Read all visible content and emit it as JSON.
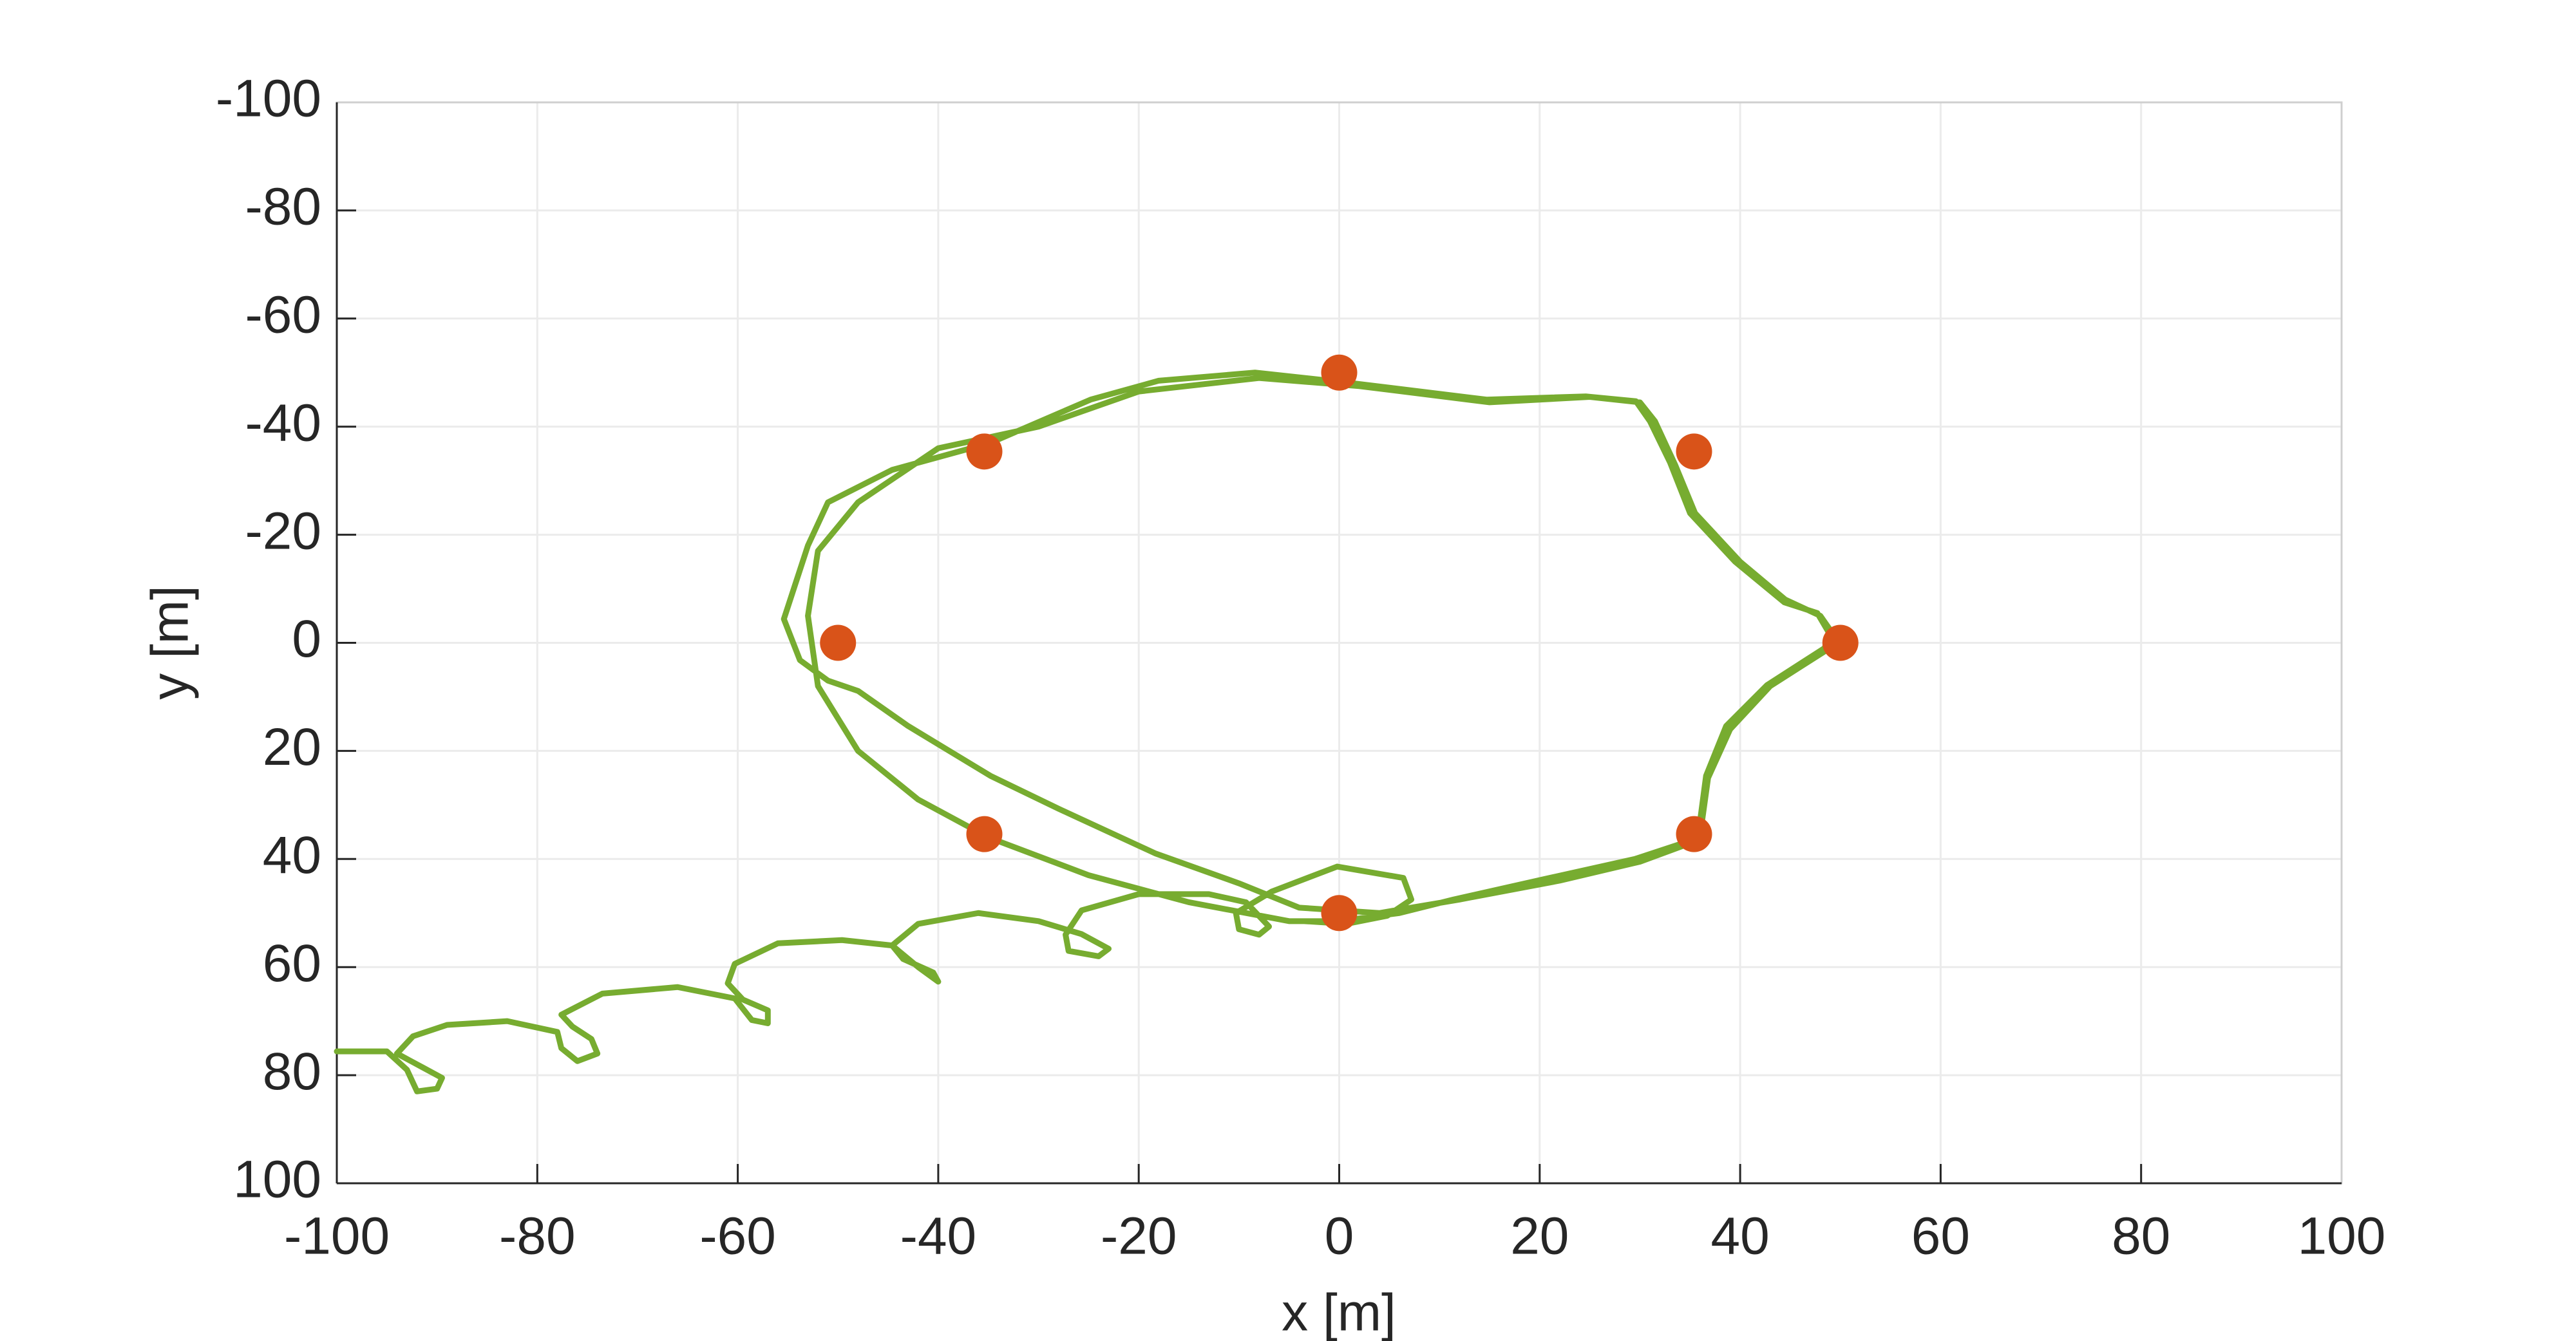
{
  "chart_data": {
    "type": "line",
    "xlabel": "x [m]",
    "ylabel": "y [m]",
    "xlim": [
      -100,
      100
    ],
    "ylim": [
      -100,
      100
    ],
    "y_reverse": true,
    "xticks": [
      -100,
      -80,
      -60,
      -40,
      -20,
      0,
      20,
      40,
      60,
      80,
      100
    ],
    "yticks": [
      -100,
      -80,
      -60,
      -40,
      -20,
      0,
      20,
      40,
      60,
      80,
      100
    ],
    "grid": true,
    "series": [
      {
        "type": "line",
        "color": "#77ac30",
        "x": [
          -100,
          -95,
          -93,
          -92,
          -90,
          -89.5,
          -91.5,
          -94,
          -92.4,
          -89,
          -83,
          -78,
          -77.6,
          -76,
          -74,
          -74.6,
          -76.5,
          -77.6,
          -73.5,
          -66,
          -60.3,
          -58.6,
          -57,
          -57,
          -59.5,
          -61,
          -60.3,
          -56,
          -49.6,
          -44.6,
          -42,
          -40,
          -40.5,
          -43.5,
          -44.6,
          -42,
          -36,
          -30,
          -25.7,
          -23,
          -24,
          -27,
          -27.3,
          -25.7,
          -20,
          -13,
          -9.3,
          -7,
          -8,
          -10,
          -10.3,
          -6.7,
          -0.2,
          6.4,
          7.2,
          4.8,
          0.7,
          -3.5,
          0,
          6,
          11.4,
          21,
          29.5,
          34.4,
          36,
          36.6,
          38.6,
          42.7,
          48.4,
          49,
          47.7,
          44.4,
          39.5,
          35,
          33,
          31,
          29.6,
          24.6,
          14.7,
          1.5,
          -8.4,
          -18,
          -24.8,
          -34.8,
          -44.6,
          -51,
          -53,
          -55.4,
          -53.8,
          -51,
          -48,
          -43,
          -34.8,
          -28,
          -18.3,
          -10,
          -4,
          4,
          12,
          22,
          30,
          34.4,
          36.2,
          36.8,
          39,
          43,
          48.5,
          49.5,
          48,
          44.5,
          40,
          35.5,
          33.5,
          31.5,
          30,
          25,
          15,
          2,
          -8,
          -20,
          -30,
          -40,
          -48,
          -52,
          -53,
          -52,
          -48,
          -42,
          -35,
          -25,
          -15,
          -5,
          0
        ],
        "y": [
          75.6,
          75.6,
          79,
          83,
          82.5,
          80.5,
          78.5,
          76,
          72.8,
          70.7,
          70,
          72,
          75,
          77.4,
          76,
          73.3,
          71,
          68.8,
          64.9,
          63.7,
          65.8,
          69.8,
          70.4,
          68,
          66,
          63,
          59.4,
          55.6,
          55,
          56,
          60,
          62.7,
          61,
          58.5,
          56,
          52,
          50,
          51.5,
          53.9,
          56.6,
          58,
          57,
          54,
          49.5,
          46.5,
          46.5,
          48,
          52.5,
          54,
          53,
          50,
          46,
          41.4,
          43.5,
          47.5,
          50.5,
          52,
          51.5,
          51.5,
          50,
          47.5,
          43.5,
          40,
          37,
          33,
          24.6,
          15.4,
          7.8,
          1,
          -1.4,
          -5.5,
          -7.5,
          -15,
          -24,
          -33.4,
          -41,
          -44.7,
          -45.6,
          -45,
          -48,
          -50,
          -48.5,
          -45,
          -37,
          -32,
          -26,
          -18,
          -4.4,
          3.2,
          7,
          8.9,
          15.4,
          24.6,
          30.7,
          39,
          44.5,
          49,
          50,
          47.5,
          44,
          40.5,
          37.5,
          33,
          25,
          16,
          8,
          1.5,
          -1,
          -5,
          -8,
          -15,
          -24,
          -33,
          -41,
          -44.5,
          -45.5,
          -44.5,
          -47.5,
          -49,
          -46.5,
          -40,
          -36,
          -26,
          -17,
          -5,
          8,
          20,
          29,
          36,
          43,
          48,
          51.5,
          51.5
        ]
      },
      {
        "type": "scatter",
        "color": "#d95319",
        "x": [
          0,
          35.4,
          50,
          35.4,
          0,
          -35.4,
          -50,
          -35.4
        ],
        "y": [
          -50,
          -35.4,
          0,
          35.4,
          50,
          35.4,
          0,
          -35.4
        ]
      }
    ]
  }
}
